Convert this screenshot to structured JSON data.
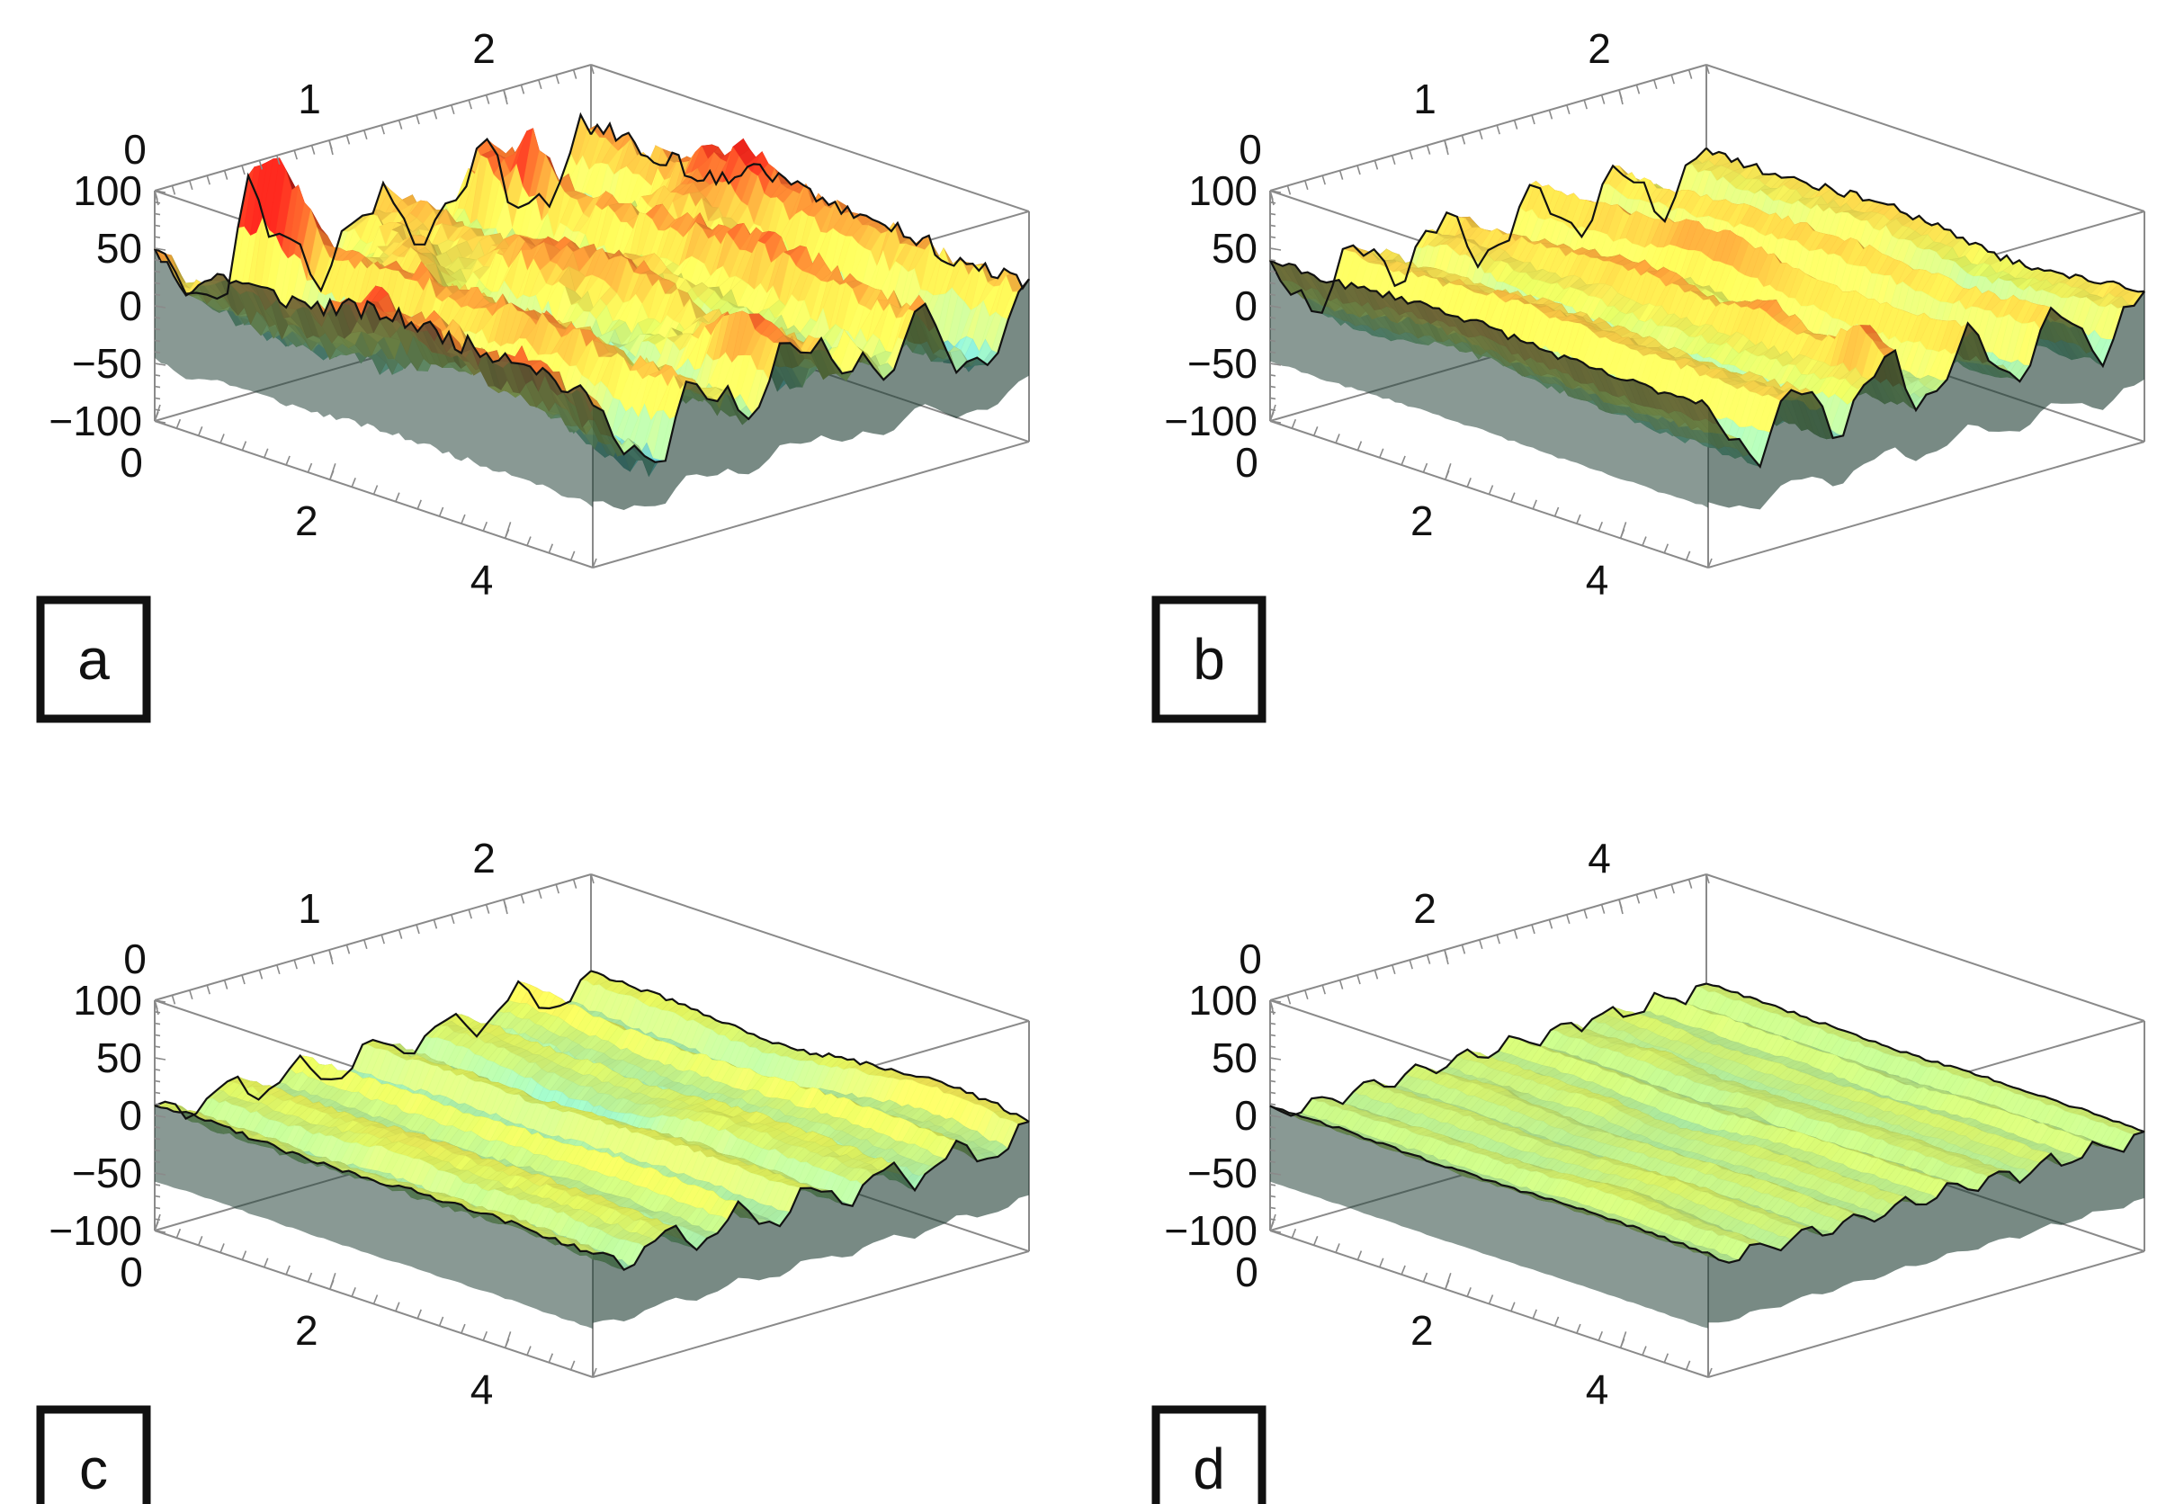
{
  "figure": {
    "background": "#ffffff",
    "box_color": "#8a8a8a"
  },
  "colormap": [
    "#2a1a5e",
    "#3b6fb8",
    "#5fc3d6",
    "#9fdc9a",
    "#d6e85a",
    "#f2c443",
    "#ef7a2e",
    "#e2231a"
  ],
  "chart_data": [
    {
      "type": "surface3d",
      "panel_label": "a",
      "x_ticks": [
        "0",
        "2",
        "4"
      ],
      "y_ticks": [
        "0",
        "1",
        "2"
      ],
      "z_ticks": [
        "100",
        "50",
        "0",
        "−50",
        "−100"
      ],
      "x_range": [
        0,
        5
      ],
      "y_range": [
        0,
        2.5
      ],
      "z_range": [
        -100,
        100
      ],
      "surface": {
        "mean": 10,
        "amplitude": 55,
        "ridge_count": 4,
        "roughness": 0.9,
        "seed": 11
      }
    },
    {
      "type": "surface3d",
      "panel_label": "b",
      "x_ticks": [
        "0",
        "2",
        "4"
      ],
      "y_ticks": [
        "0",
        "1",
        "2"
      ],
      "z_ticks": [
        "100",
        "50",
        "0",
        "−50",
        "−100"
      ],
      "x_range": [
        0,
        5
      ],
      "y_range": [
        0,
        2.5
      ],
      "z_range": [
        -100,
        100
      ],
      "surface": {
        "mean": 10,
        "amplitude": 45,
        "ridge_count": 5,
        "roughness": 0.45,
        "seed": 23
      }
    },
    {
      "type": "surface3d",
      "panel_label": "c",
      "x_ticks": [
        "0",
        "2",
        "4"
      ],
      "y_ticks": [
        "0",
        "1",
        "2"
      ],
      "z_ticks": [
        "100",
        "50",
        "0",
        "−50",
        "−100"
      ],
      "x_range": [
        0,
        5
      ],
      "y_range": [
        0,
        2.5
      ],
      "z_range": [
        -100,
        100
      ],
      "surface": {
        "mean": 0,
        "amplitude": 22,
        "ridge_count": 6,
        "roughness": 0.55,
        "seed": 37
      }
    },
    {
      "type": "surface3d",
      "panel_label": "d",
      "x_ticks": [
        "0",
        "2",
        "4"
      ],
      "y_ticks": [
        "0",
        "2",
        "4"
      ],
      "z_ticks": [
        "100",
        "50",
        "0",
        "−50",
        "−100"
      ],
      "x_range": [
        0,
        5
      ],
      "y_range": [
        0,
        5
      ],
      "z_range": [
        -100,
        100
      ],
      "surface": {
        "mean": 0,
        "amplitude": 12,
        "ridge_count": 9,
        "roughness": 0.6,
        "seed": 53
      }
    }
  ]
}
